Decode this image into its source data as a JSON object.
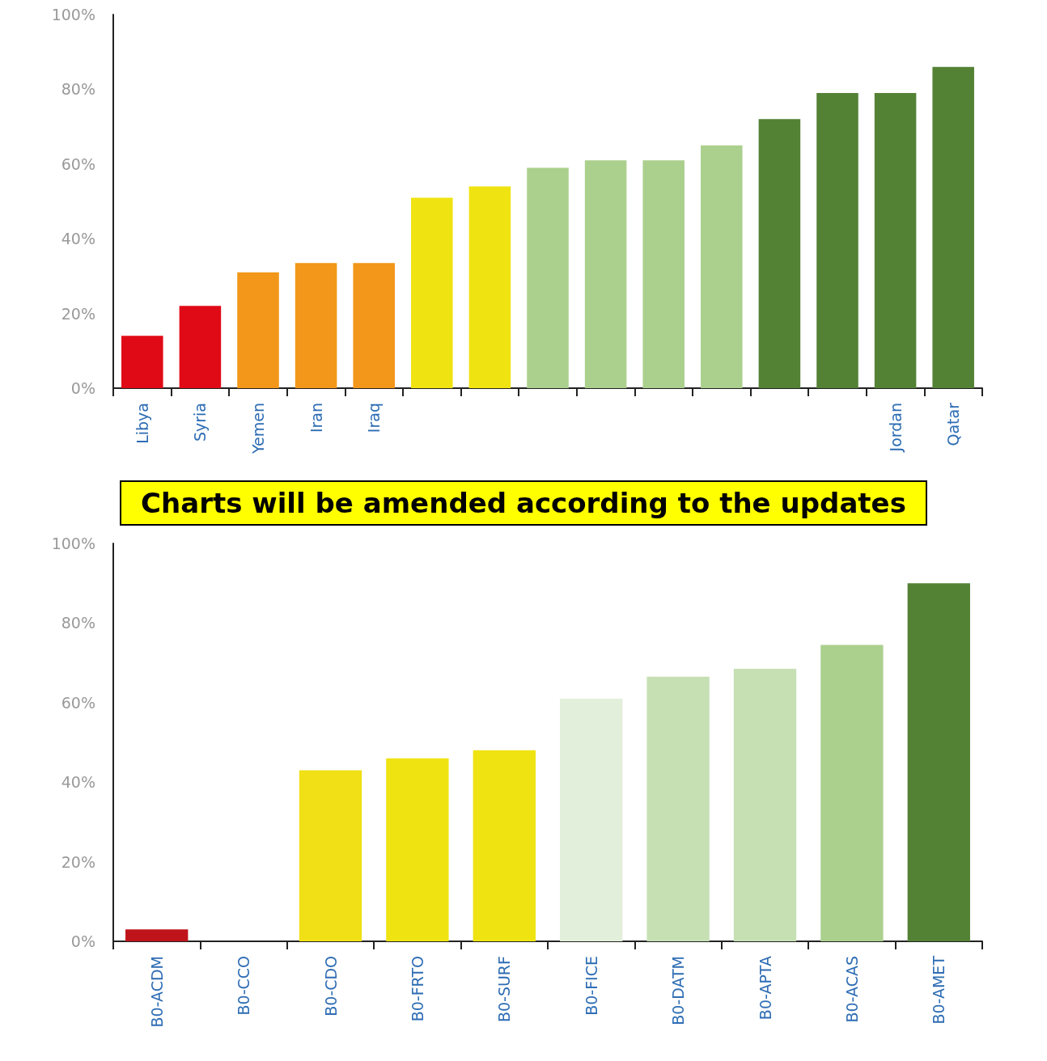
{
  "chart_data": [
    {
      "type": "bar",
      "categories": [
        "Libya",
        "Syria",
        "Yemen",
        "Iran",
        "Iraq",
        null,
        null,
        null,
        null,
        null,
        null,
        null,
        null,
        "Jordan",
        "Qatar"
      ],
      "values": [
        14,
        22,
        31,
        33.5,
        33.5,
        51,
        54,
        59,
        61,
        61,
        65,
        72,
        79,
        79,
        86
      ],
      "colors": [
        "#e00a17",
        "#e00a17",
        "#f29719",
        "#f29719",
        "#f29719",
        "#efe312",
        "#efe312",
        "#abd08e",
        "#abd08e",
        "#abd08e",
        "#abd08e",
        "#548235",
        "#548235",
        "#548235",
        "#548235"
      ],
      "ylim": [
        0,
        100
      ],
      "yticks": [
        {
          "value": 0,
          "label": "0%"
        },
        {
          "value": 20,
          "label": "20%"
        },
        {
          "value": 40,
          "label": "40%"
        },
        {
          "value": 60,
          "label": "60%"
        },
        {
          "value": 80,
          "label": "80%"
        },
        {
          "value": 100,
          "label": "100%"
        }
      ],
      "annotations": [
        "Charts will be amended according to the updates"
      ]
    },
    {
      "type": "bar",
      "categories": [
        "B0-ACDM",
        "B0-CCO",
        "B0-CDO",
        "B0-FRTO",
        "B0-SURF",
        "B0-FICE",
        "B0-DATM",
        "B0-APTA",
        "B0-ACAS",
        "B0-AMET"
      ],
      "values": [
        3,
        null,
        43,
        46,
        48,
        61,
        66.5,
        68.5,
        74.5,
        90
      ],
      "colors": [
        "#c0141b",
        "#fcc516",
        "#f0e015",
        "#efe312",
        "#efe312",
        "#e2efda",
        "#c6e0b4",
        "#c6e0b4",
        "#abd08e",
        "#548235"
      ],
      "ylim": [
        0,
        100
      ],
      "yticks": [
        {
          "value": 0,
          "label": "0%"
        },
        {
          "value": 20,
          "label": "20%"
        },
        {
          "value": 40,
          "label": "40%"
        },
        {
          "value": 60,
          "label": "60%"
        },
        {
          "value": 80,
          "label": "80%"
        },
        {
          "value": 100,
          "label": "100%"
        }
      ]
    }
  ]
}
